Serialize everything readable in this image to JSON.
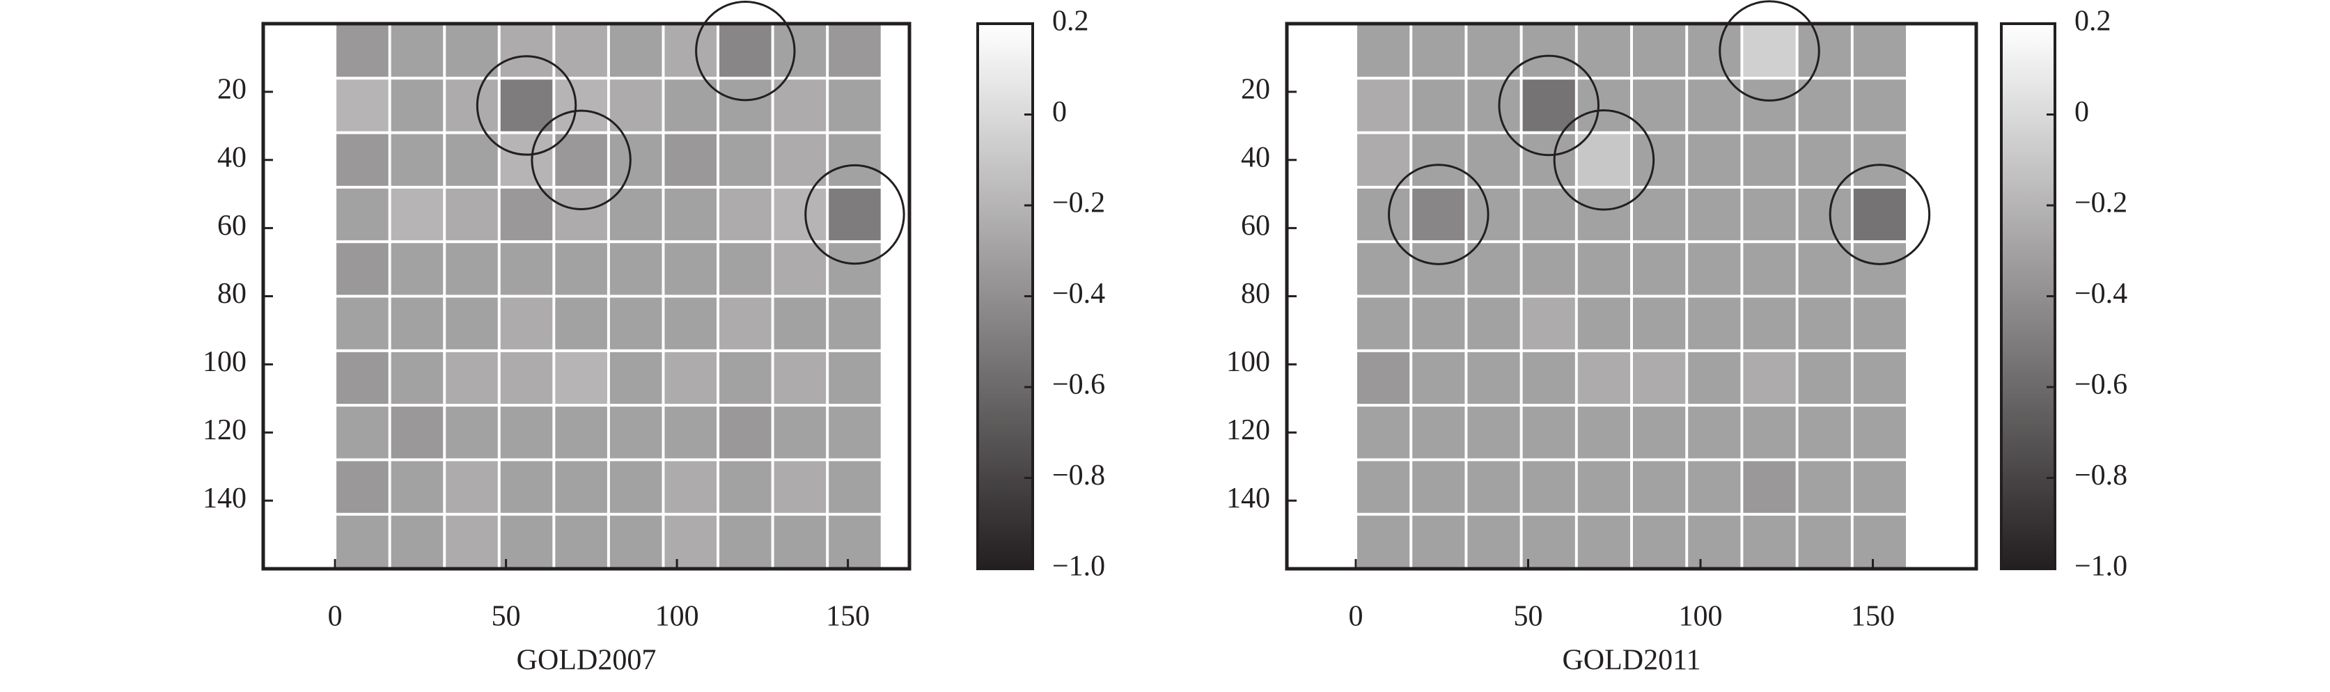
{
  "chart_data": [
    {
      "type": "heatmap",
      "xlabel": "GOLD2007",
      "xlim": [
        -21,
        168
      ],
      "ylim": [
        0,
        160
      ],
      "y_inverted": true,
      "xticks": [
        0,
        50,
        100,
        150
      ],
      "yticks": [
        20,
        40,
        60,
        80,
        100,
        120,
        140
      ],
      "extent": [
        0,
        160,
        0,
        160
      ],
      "values": [
        [
          -0.35,
          -0.3,
          -0.3,
          -0.25,
          -0.25,
          -0.3,
          -0.25,
          -0.45,
          -0.3,
          -0.35
        ],
        [
          -0.2,
          -0.3,
          -0.25,
          -0.5,
          -0.2,
          -0.25,
          -0.3,
          -0.3,
          -0.25,
          -0.3
        ],
        [
          -0.35,
          -0.3,
          -0.3,
          -0.2,
          -0.35,
          -0.3,
          -0.35,
          -0.3,
          -0.25,
          -0.3
        ],
        [
          -0.3,
          -0.2,
          -0.25,
          -0.35,
          -0.25,
          -0.3,
          -0.3,
          -0.25,
          -0.2,
          -0.5
        ],
        [
          -0.35,
          -0.3,
          -0.3,
          -0.3,
          -0.3,
          -0.3,
          -0.3,
          -0.3,
          -0.25,
          -0.3
        ],
        [
          -0.3,
          -0.3,
          -0.3,
          -0.25,
          -0.3,
          -0.3,
          -0.3,
          -0.25,
          -0.3,
          -0.3
        ],
        [
          -0.35,
          -0.3,
          -0.25,
          -0.25,
          -0.2,
          -0.3,
          -0.25,
          -0.3,
          -0.25,
          -0.3
        ],
        [
          -0.3,
          -0.35,
          -0.3,
          -0.3,
          -0.3,
          -0.3,
          -0.3,
          -0.35,
          -0.3,
          -0.3
        ],
        [
          -0.35,
          -0.3,
          -0.25,
          -0.3,
          -0.3,
          -0.3,
          -0.25,
          -0.3,
          -0.25,
          -0.3
        ],
        [
          -0.3,
          -0.3,
          -0.25,
          -0.3,
          -0.3,
          -0.3,
          -0.25,
          -0.3,
          -0.3,
          -0.3
        ]
      ],
      "circled": [
        [
          0,
          7
        ],
        [
          1,
          3
        ],
        [
          2,
          4
        ],
        [
          3,
          9
        ]
      ],
      "clim": [
        -1,
        0.2
      ],
      "cticks": [
        0.2,
        0,
        {
          "value": -0.2,
          "label": "−0.2"
        },
        {
          "value": -0.4,
          "label": "−0.4"
        },
        {
          "value": -0.6,
          "label": "−0.6"
        },
        {
          "value": -0.8,
          "label": "−0.8"
        },
        {
          "value": -1,
          "label": "−1.0"
        }
      ]
    },
    {
      "type": "heatmap",
      "xlabel": "GOLD2011",
      "xlim": [
        -20,
        180
      ],
      "ylim": [
        0,
        160
      ],
      "y_inverted": true,
      "xticks": [
        0,
        50,
        100,
        150
      ],
      "yticks": [
        20,
        40,
        60,
        80,
        100,
        120,
        140
      ],
      "extent": [
        0,
        160,
        0,
        160
      ],
      "values": [
        [
          -0.3,
          -0.3,
          -0.3,
          -0.3,
          -0.3,
          -0.3,
          -0.3,
          -0.05,
          -0.3,
          -0.3
        ],
        [
          -0.25,
          -0.3,
          -0.3,
          -0.55,
          -0.3,
          -0.3,
          -0.3,
          -0.3,
          -0.3,
          -0.3
        ],
        [
          -0.25,
          -0.3,
          -0.3,
          -0.3,
          -0.1,
          -0.3,
          -0.3,
          -0.3,
          -0.3,
          -0.3
        ],
        [
          -0.3,
          -0.45,
          -0.3,
          -0.3,
          -0.3,
          -0.3,
          -0.3,
          -0.3,
          -0.3,
          -0.55
        ],
        [
          -0.3,
          -0.3,
          -0.3,
          -0.3,
          -0.3,
          -0.3,
          -0.3,
          -0.3,
          -0.3,
          -0.3
        ],
        [
          -0.3,
          -0.3,
          -0.3,
          -0.25,
          -0.3,
          -0.3,
          -0.3,
          -0.3,
          -0.3,
          -0.3
        ],
        [
          -0.35,
          -0.3,
          -0.3,
          -0.3,
          -0.25,
          -0.25,
          -0.3,
          -0.25,
          -0.3,
          -0.3
        ],
        [
          -0.3,
          -0.3,
          -0.3,
          -0.3,
          -0.3,
          -0.3,
          -0.3,
          -0.3,
          -0.3,
          -0.3
        ],
        [
          -0.3,
          -0.3,
          -0.3,
          -0.3,
          -0.3,
          -0.3,
          -0.3,
          -0.35,
          -0.3,
          -0.3
        ],
        [
          -0.3,
          -0.3,
          -0.3,
          -0.3,
          -0.3,
          -0.3,
          -0.3,
          -0.3,
          -0.3,
          -0.3
        ]
      ],
      "circled": [
        [
          0,
          7
        ],
        [
          1,
          3
        ],
        [
          2,
          4
        ],
        [
          3,
          1
        ],
        [
          3,
          9
        ]
      ],
      "clim": [
        -1,
        0.2
      ],
      "cticks": [
        0.2,
        0,
        {
          "value": -0.2,
          "label": "−0.2"
        },
        {
          "value": -0.4,
          "label": "−0.4"
        },
        {
          "value": -0.6,
          "label": "−0.6"
        },
        {
          "value": -0.8,
          "label": "−0.8"
        },
        {
          "value": -1,
          "label": "−1.0"
        }
      ]
    }
  ]
}
